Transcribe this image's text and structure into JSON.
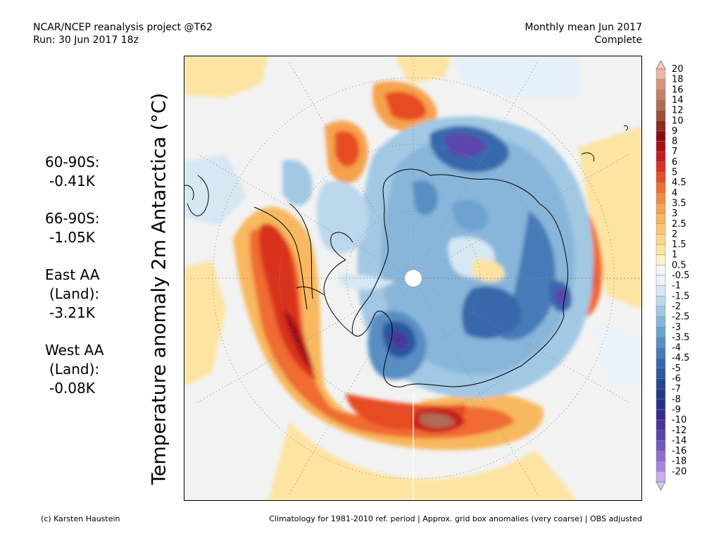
{
  "header": {
    "line1_left": "NCAR/NCEP reanalysis project @T62",
    "line2_left": "Run: 30 Jun 2017 18z",
    "line1_right": "Monthly mean Jun 2017",
    "line2_right": "Complete"
  },
  "ylabel": "Temperature anomaly 2m Antarctica (°C)",
  "stats": [
    {
      "label": "60-90S:",
      "value": "-0.41K"
    },
    {
      "label": "66-90S:",
      "value": "-1.05K"
    },
    {
      "label": "East AA",
      "label2": "(Land):",
      "value": "-3.21K"
    },
    {
      "label": "West AA",
      "label2": "(Land):",
      "value": "-0.08K"
    }
  ],
  "colorbar": {
    "labels": [
      "20",
      "18",
      "16",
      "14",
      "12",
      "10",
      "9",
      "8",
      "7",
      "6",
      "5",
      "4.5",
      "4",
      "3.5",
      "3",
      "2.5",
      "2",
      "1.5",
      "1",
      "0.5",
      "-0.5",
      "-1",
      "-1.5",
      "-2",
      "-2.5",
      "-3",
      "-3.5",
      "-4",
      "-4.5",
      "-5",
      "-6",
      "-7",
      "-8",
      "-9",
      "-10",
      "-12",
      "-14",
      "-16",
      "-18",
      "-20"
    ],
    "colors": [
      "#e8b8a4",
      "#d4967e",
      "#c4806a",
      "#b06a55",
      "#9c4e3c",
      "#8c2a1e",
      "#8c0a12",
      "#a80f16",
      "#c41a1e",
      "#d8301e",
      "#e84c24",
      "#f06c30",
      "#f48a40",
      "#f6a24e",
      "#f8b85e",
      "#fac872",
      "#fcd888",
      "#fde4a2",
      "#fef0c8",
      "#f4f4f4",
      "#eaf2fa",
      "#d6e8f4",
      "#bcd8ec",
      "#a2c8e4",
      "#88b6da",
      "#6ea2d0",
      "#588ec4",
      "#467ab8",
      "#3868ac",
      "#2c56a0",
      "#244696",
      "#223a8c",
      "#28308a",
      "#342c90",
      "#48349c",
      "#5c44ac",
      "#7456bc",
      "#8c6ccc",
      "#a488dc",
      "#c4b0ec"
    ],
    "under_color": "#d0c8f4",
    "over_color": "#f4c8b8"
  },
  "footer": {
    "left": "(c) Karsten Haustein",
    "right": "Climatology for 1981-2010 ref. period | Approx. grid box anomalies (very coarse) | OBS adjusted"
  }
}
